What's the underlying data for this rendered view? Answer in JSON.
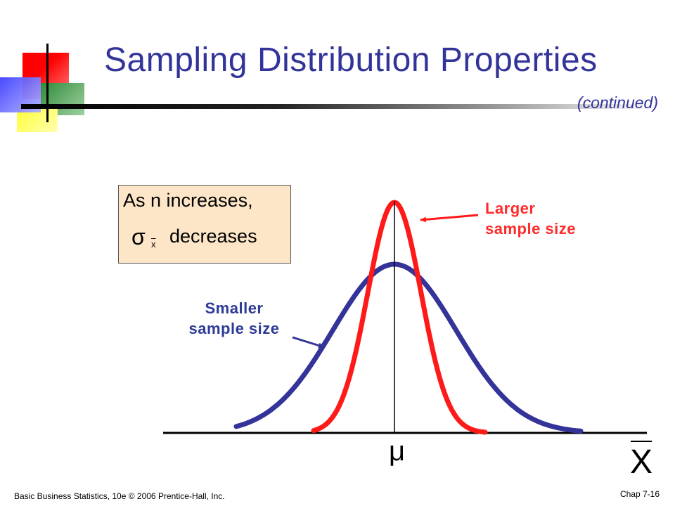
{
  "slide": {
    "title": "Sampling Distribution Properties",
    "subtitle": "(continued)"
  },
  "note": {
    "line1": "As n  increases,",
    "sigma_symbol": "σ",
    "sigma_subscript": "x",
    "line2": "decreases"
  },
  "labels": {
    "larger": [
      "Larger",
      "sample size"
    ],
    "smaller": [
      "Smaller",
      "sample size"
    ],
    "mean_symbol": "μ",
    "axis_symbol": "X"
  },
  "colors": {
    "title": "#33349a",
    "larger_curve": "#ff1a1a",
    "smaller_curve": "#333399",
    "note_bg": "#fde6c8"
  },
  "footer": {
    "left": "Basic Business Statistics, 10e © 2006 Prentice-Hall,  Inc.",
    "right": "Chap 7-16"
  }
}
